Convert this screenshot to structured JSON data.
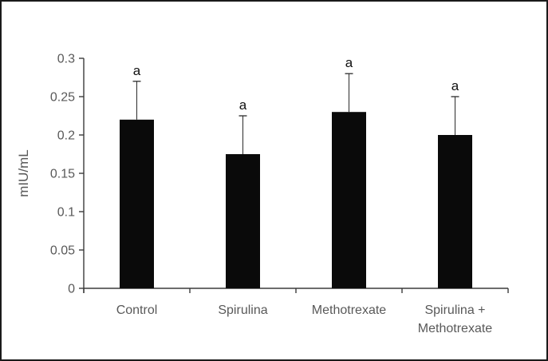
{
  "window": {
    "background": "#ffffff",
    "border_color": "#1a1a1a"
  },
  "chart_data": {
    "type": "bar",
    "title": "",
    "xlabel": "",
    "ylabel": "mIU/mL",
    "categories": [
      [
        "Control"
      ],
      [
        "Spirulina"
      ],
      [
        "Methotrexate"
      ],
      [
        "Spirulina +",
        "Methotrexate"
      ]
    ],
    "values": [
      0.22,
      0.175,
      0.23,
      0.2
    ],
    "error_plus": [
      0.05,
      0.05,
      0.05,
      0.05
    ],
    "point_labels": [
      "a",
      "a",
      "a",
      "a"
    ],
    "ylim": [
      0,
      0.3
    ],
    "ytick_values": [
      0,
      0.05,
      0.1,
      0.15,
      0.2,
      0.25,
      0.3
    ],
    "ytick_labels": [
      "0",
      "0.05",
      "0.1",
      "0.15",
      "0.2",
      "0.25",
      "0.3"
    ],
    "grid": false,
    "legend_position": "none",
    "bar_color": "#0a0a0a",
    "error_bar_color": "#2b2b2b",
    "axis_color": "#3b3b3b",
    "tick_label_color": "#595959",
    "annotation_color": "#111111"
  }
}
